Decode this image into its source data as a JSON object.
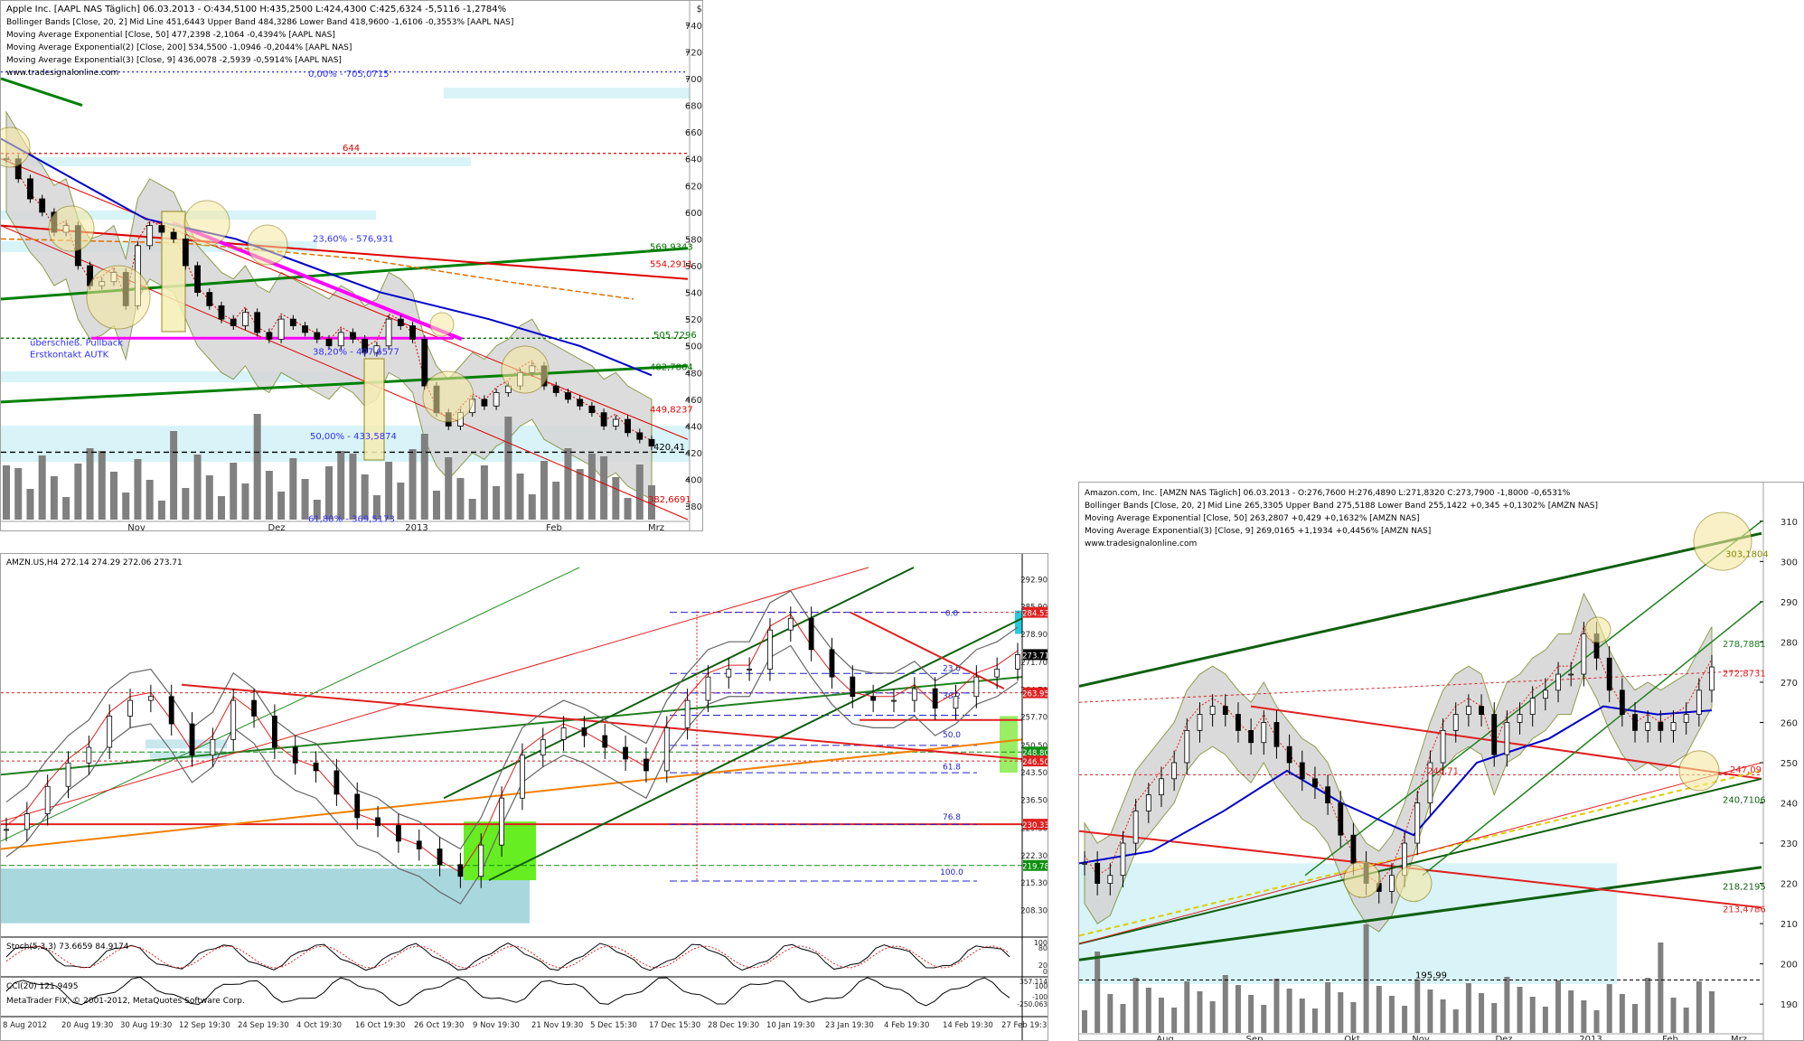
{
  "charts": {
    "aapl": {
      "header": "Apple Inc. [AAPL NAS  Täglich] 06.03.2013 - O:434,5100 H:435,2500 L:424,4300 C:425,6324 -5,5116 -1,2784%",
      "legend": [
        {
          "text": "Bollinger Bands [Close, 20, 2] Mid Line 451,6443 Upper Band 484,3286 Lower Band 418,9600 -1,6106 -0,3553% [AAPL NAS]",
          "color": "#cc0000"
        },
        {
          "text": "Moving Average Exponential [Close, 50] 477,2398 -2,1064 -0,4394% [AAPL NAS]",
          "color": "#0000cc"
        },
        {
          "text": "Moving Average Exponential(2) [Close, 200] 534,5500 -1,0946 -0,2044% [AAPL NAS]",
          "color": "#e07000"
        },
        {
          "text": "Moving Average Exponential(3) [Close, 9] 436,0078 -2,5939 -0,5914% [AAPL NAS]",
          "color": "#cc0000"
        }
      ],
      "watermark": "www.tradesignalonline.com",
      "currency_symbol": "$",
      "yticks": [
        "740",
        "720",
        "700",
        "680",
        "660",
        "640",
        "620",
        "600",
        "580",
        "560",
        "540",
        "520",
        "500",
        "480",
        "460",
        "440",
        "420",
        "400",
        "380"
      ],
      "xticks": [
        "Nov",
        "Dez",
        "2013",
        "Feb",
        "Mrz"
      ],
      "annotations": {
        "fib0": "0,00% - 705,0715",
        "lvl644": "644",
        "fib236": "23,60% - 576,931",
        "lvl569": "569,9343",
        "lvl554": "554,2911",
        "lvl505": "505,7296",
        "pullback1": "überschieß. Pullback",
        "pullback2": "Erstkontakt AUTK",
        "fib382": "38,20% - 497,6577",
        "lvl482": "482,7864",
        "lvl449": "449,8237",
        "fib50": "50,00% - 433,5874",
        "lvl420": "420,41",
        "lvl382": "382,6691",
        "fib618": "61,80% - 369,5173"
      }
    },
    "mt4": {
      "header": "AMZN.US,H4  272.14 274.29 272.06 273.71",
      "yticks": [
        "292.90",
        "285.90",
        "278.90",
        "271.70",
        "264.70",
        "257.70",
        "250.50",
        "243.50",
        "236.50",
        "229.30",
        "222.30",
        "215.30",
        "208.30"
      ],
      "price_tags": [
        {
          "text": "284.53",
          "bg": "#e02020"
        },
        {
          "text": "273.71",
          "bg": "#000000"
        },
        {
          "text": "263.95",
          "bg": "#e02020"
        },
        {
          "text": "248.80",
          "bg": "#109010"
        },
        {
          "text": "246.50",
          "bg": "#e02020"
        },
        {
          "text": "230.33",
          "bg": "#e02020"
        },
        {
          "text": "219.78",
          "bg": "#109010"
        }
      ],
      "fib_labels": [
        "0.0",
        "23.6",
        "38.2",
        "50.0",
        "61.8",
        "76.8",
        "100.0"
      ],
      "stoch_label": "Stoch(5,3,3) 73.6659 84.9174",
      "stoch_ticks": [
        "100",
        "80",
        "20",
        "0"
      ],
      "cci_label": "CCI(20) 121.9495",
      "copyright": "MetaTrader FIX, © 2001-2012, MetaQuotes Software Corp.",
      "cci_ticks": [
        "357.114",
        "100",
        "-100",
        "-250.063"
      ],
      "xticks": [
        "8 Aug 2012",
        "20 Aug 19:30",
        "30 Aug 19:30",
        "12 Sep 19:30",
        "24 Sep 19:30",
        "4 Oct 19:30",
        "16 Oct 19:30",
        "26 Oct 19:30",
        "9 Nov 19:30",
        "21 Nov 19:30",
        "5 Dec 15:30",
        "17 Dec 15:30",
        "28 Dec 19:30",
        "10 Jan 19:30",
        "23 Jan 19:30",
        "4 Feb 19:30",
        "14 Feb 19:30",
        "27 Feb 19:30"
      ]
    },
    "amzn": {
      "header": "Amazon.com, Inc. [AMZN NAS  Täglich] 06.03.2013 - O:276,7600 H:276,4890 L:271,8320 C:273,7900 -1,8000 -0,6531%",
      "legend": [
        {
          "text": "Bollinger Bands [Close, 20, 2] Mid Line 265,3305 Upper Band 275,5188 Lower Band 255,1422 +0,345 +0,1302% [AMZN NAS]",
          "color": "#cc0000"
        },
        {
          "text": "Moving Average Exponential [Close, 50] 263,2807 +0,429 +0,1632% [AMZN NAS]",
          "color": "#0000cc"
        },
        {
          "text": "Moving Average Exponential(3) [Close, 9] 269,0165 +1,1934 +0,4456% [AMZN NAS]",
          "color": "#cc0000"
        }
      ],
      "watermark": "www.tradesignalonline.com",
      "yticks": [
        "310",
        "300",
        "290",
        "280",
        "270",
        "260",
        "250",
        "240",
        "230",
        "220",
        "210",
        "200",
        "190"
      ],
      "xticks": [
        "Aug",
        "Sep",
        "Okt",
        "Nov",
        "Dez",
        "2013",
        "Feb",
        "Mrz"
      ],
      "annotations": {
        "lvl303": "303,1804",
        "lvl278": "278,7881",
        "lvl272": "272,8731",
        "lvl246": "246,71",
        "lvl247": "247,09",
        "lvl240": "240,7106",
        "lvl218": "218,2195",
        "lvl213": "213,4786",
        "lvl195": "195,99"
      }
    }
  },
  "chart_data": [
    {
      "type": "candlestick",
      "title": "Apple Inc. [AAPL NAS  Täglich] 06.03.2013",
      "x": [
        "Nov",
        "Dez",
        "2013",
        "Feb",
        "Mrz"
      ],
      "ylim": [
        370,
        750
      ],
      "close_path": [
        640,
        625,
        610,
        600,
        585,
        590,
        560,
        545,
        548,
        555,
        530,
        575,
        590,
        585,
        580,
        560,
        540,
        530,
        520,
        515,
        525,
        510,
        505,
        520,
        515,
        510,
        505,
        500,
        510,
        505,
        495,
        500,
        520,
        515,
        505,
        470,
        450,
        440,
        450,
        460,
        455,
        465,
        470,
        480,
        485,
        470,
        465,
        460,
        455,
        450,
        440,
        445,
        435,
        430,
        425
      ],
      "support_resistance": [
        644,
        569.9343,
        554.2911,
        505.7296,
        482.7864,
        449.8237,
        420.41,
        382.6691
      ],
      "fibonacci": [
        {
          "pct": "0,00%",
          "value": 705.0715
        },
        {
          "pct": "23,60%",
          "value": 576.931
        },
        {
          "pct": "38,20%",
          "value": 497.6577
        },
        {
          "pct": "50,00%",
          "value": 433.5874
        },
        {
          "pct": "61,80%",
          "value": 369.5173
        }
      ]
    },
    {
      "type": "candlestick",
      "title": "AMZN.US,H4",
      "ylim": [
        204,
        296
      ],
      "close_path": [
        229,
        233,
        240,
        246,
        250,
        258,
        262,
        263,
        256,
        248,
        252,
        262,
        258,
        250,
        246,
        244,
        238,
        232,
        230,
        226,
        224,
        220,
        217,
        225,
        237,
        248,
        252,
        255,
        253,
        250,
        247,
        244,
        255,
        262,
        268,
        270,
        270,
        280,
        283,
        275,
        268,
        263,
        262,
        262,
        265,
        260,
        263,
        268,
        270,
        273.71
      ],
      "levels": [
        284.53,
        263.95,
        248.8,
        246.5,
        230.33,
        219.78
      ]
    },
    {
      "type": "candlestick",
      "title": "Amazon.com, Inc. [AMZN NAS  Täglich] 06.03.2013",
      "x": [
        "Aug",
        "Sep",
        "Okt",
        "Nov",
        "Dez",
        "2013",
        "Feb",
        "Mrz"
      ],
      "ylim": [
        186,
        314
      ],
      "close_path": [
        225,
        220,
        222,
        230,
        238,
        242,
        246,
        250,
        258,
        262,
        264,
        262,
        258,
        255,
        260,
        254,
        250,
        246,
        244,
        240,
        232,
        225,
        220,
        218,
        222,
        230,
        240,
        250,
        258,
        262,
        264,
        262,
        252,
        260,
        262,
        266,
        268,
        272,
        272,
        282,
        276,
        268,
        262,
        258,
        260,
        258,
        260,
        262,
        268,
        273.79
      ],
      "levels": [
        303.1804,
        278.7881,
        272.8731,
        247.09,
        246.71,
        240.7106,
        218.2195,
        213.4786,
        195.99
      ]
    }
  ]
}
